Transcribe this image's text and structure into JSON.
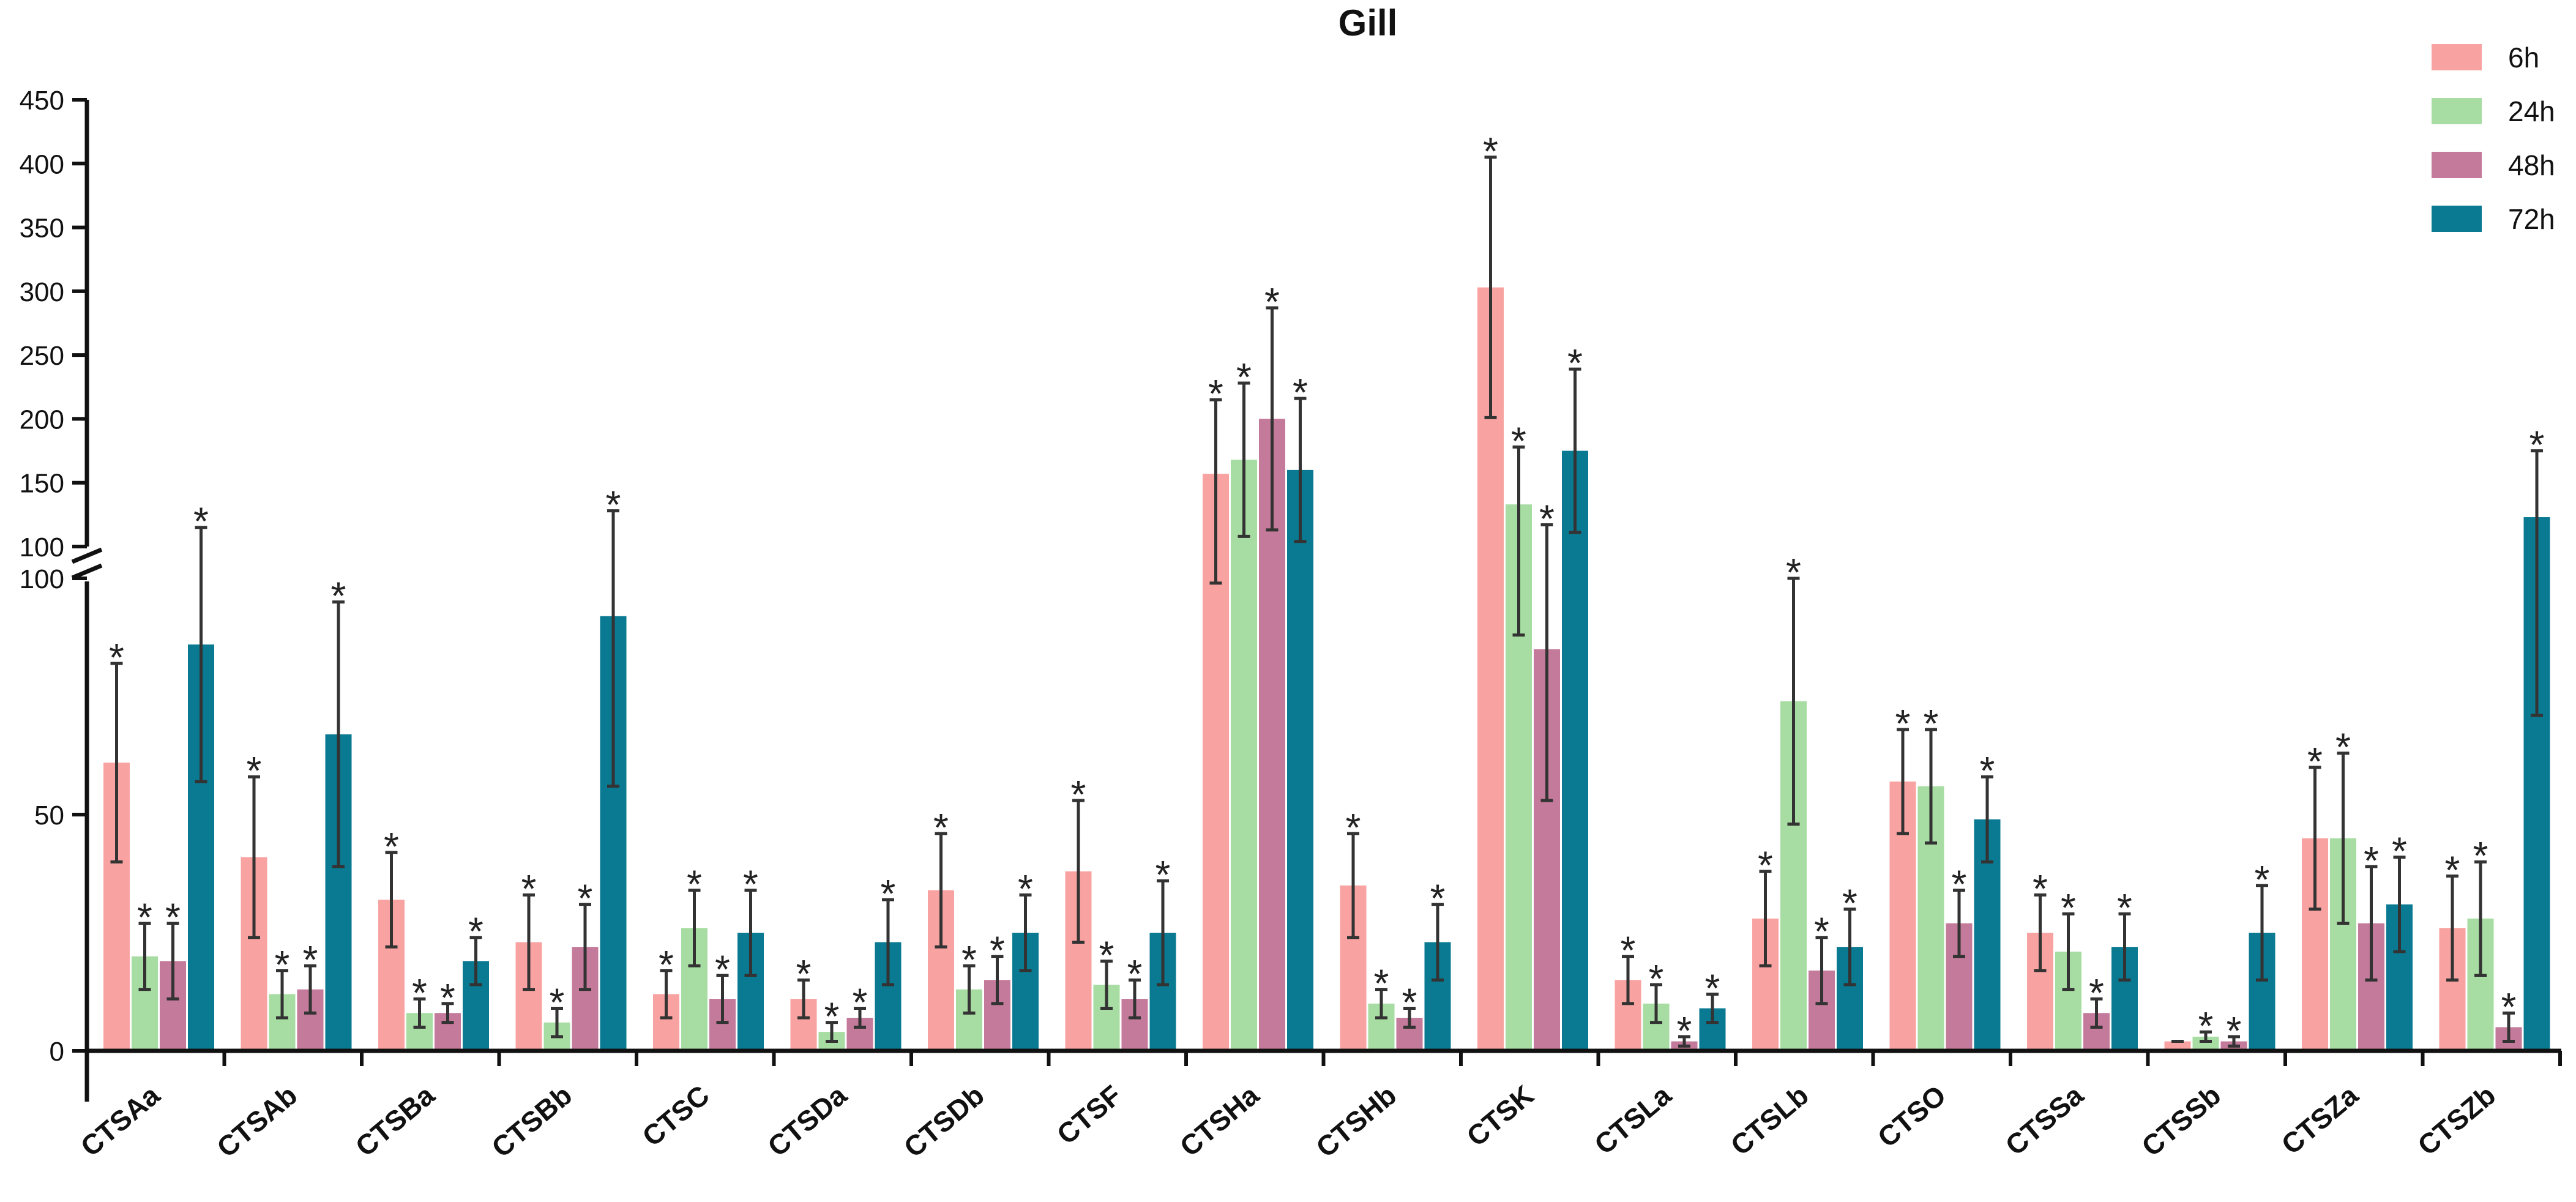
{
  "chart_data": {
    "type": "bar",
    "title": "Gill",
    "xlabel": "",
    "ylabel": "",
    "axis_break": {
      "lower_range": [
        -10,
        100
      ],
      "upper_range": [
        100,
        450
      ]
    },
    "lower_ticks": [
      "0",
      "50",
      "100"
    ],
    "upper_ticks": [
      "100",
      "150",
      "200",
      "250",
      "300",
      "350",
      "400",
      "450"
    ],
    "categories": [
      "CTSAa",
      "CTSAb",
      "CTSBa",
      "CTSBb",
      "CTSC",
      "CTSDa",
      "CTSDb",
      "CTSF",
      "CTSHa",
      "CTSHb",
      "CTSK",
      "CTSLa",
      "CTSLb",
      "CTSO",
      "CTSSa",
      "CTSSb",
      "CTSZa",
      "CTSZb"
    ],
    "significance_marker": "*",
    "legend_position": "top-right",
    "series": [
      {
        "name": "6h",
        "color": "#F8A3A1",
        "values": [
          61,
          41,
          32,
          23,
          12,
          11,
          34,
          38,
          157,
          35,
          303,
          15,
          28,
          57,
          25,
          2,
          45,
          26
        ],
        "errors": [
          21,
          17,
          10,
          10,
          5,
          4,
          12,
          15,
          58,
          11,
          102,
          5,
          10,
          11,
          8,
          0,
          15,
          11
        ],
        "significant": [
          true,
          true,
          true,
          true,
          true,
          true,
          true,
          true,
          true,
          true,
          true,
          true,
          true,
          true,
          true,
          false,
          true,
          true
        ]
      },
      {
        "name": "24h",
        "color": "#A7DDA2",
        "values": [
          20,
          12,
          8,
          6,
          26,
          4,
          13,
          14,
          168,
          10,
          133,
          10,
          74,
          56,
          21,
          3,
          45,
          28
        ],
        "errors": [
          7,
          5,
          3,
          3,
          8,
          2,
          5,
          5,
          60,
          3,
          45,
          4,
          26,
          12,
          8,
          1,
          18,
          12
        ],
        "significant": [
          true,
          true,
          true,
          true,
          true,
          true,
          true,
          true,
          true,
          true,
          true,
          true,
          true,
          true,
          true,
          true,
          true,
          true
        ]
      },
      {
        "name": "48h",
        "color": "#C47A9A",
        "values": [
          19,
          13,
          8,
          22,
          11,
          7,
          15,
          11,
          200,
          7,
          85,
          2,
          17,
          27,
          8,
          2,
          27,
          5
        ],
        "errors": [
          8,
          5,
          2,
          9,
          5,
          2,
          5,
          4,
          87,
          2,
          32,
          1,
          7,
          7,
          3,
          1,
          12,
          3
        ],
        "significant": [
          true,
          true,
          true,
          true,
          true,
          true,
          true,
          true,
          true,
          true,
          true,
          true,
          true,
          true,
          true,
          true,
          true,
          true
        ]
      },
      {
        "name": "72h",
        "color": "#0A7A92",
        "values": [
          86,
          67,
          19,
          92,
          25,
          23,
          25,
          25,
          160,
          23,
          175,
          9,
          22,
          49,
          22,
          25,
          31,
          123
        ],
        "errors": [
          29,
          28,
          5,
          36,
          9,
          9,
          8,
          11,
          56,
          8,
          64,
          3,
          8,
          9,
          7,
          10,
          10,
          52
        ],
        "significant": [
          true,
          true,
          true,
          true,
          true,
          true,
          true,
          true,
          true,
          true,
          true,
          true,
          true,
          true,
          true,
          true,
          true,
          true
        ]
      }
    ]
  }
}
